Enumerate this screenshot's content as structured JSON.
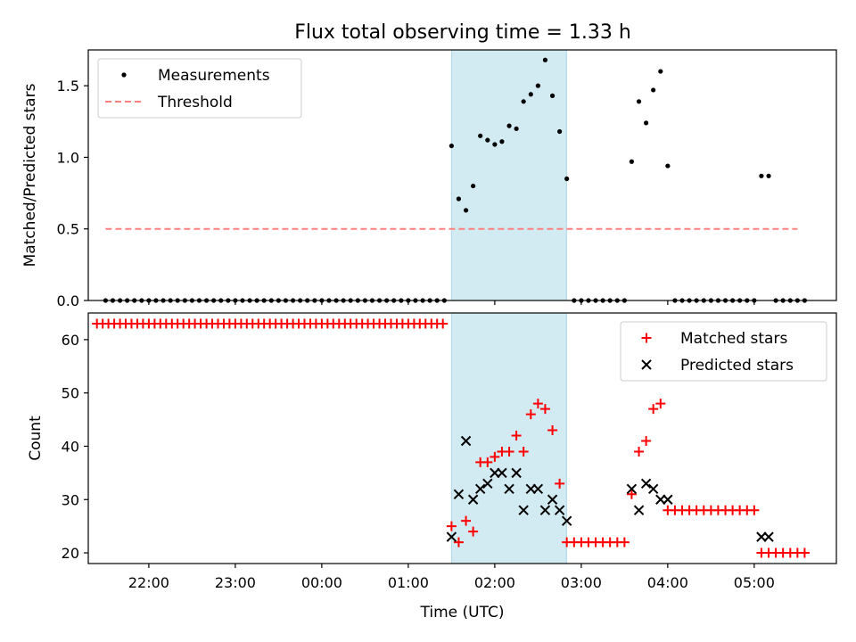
{
  "title": "Flux total observing time = 1.33 h",
  "colors": {
    "measurement": "#000000",
    "threshold": "#ff7f7f",
    "matched": "#ff0000",
    "predicted": "#000000",
    "highlight": "#add8e6"
  },
  "chart_data": [
    {
      "type": "scatter",
      "ylabel": "Matched/Predicted stars",
      "xlabel": "",
      "xlim": [
        21.3,
        29.95
      ],
      "ylim": [
        0,
        1.75
      ],
      "yticks": [
        0.0,
        0.5,
        1.0,
        1.5
      ],
      "ytick_labels": [
        "0.0",
        "0.5",
        "1.0",
        "1.5"
      ],
      "highlight_span": [
        25.5,
        26.83
      ],
      "legend": {
        "position": "upper-left",
        "entries": [
          "Measurements",
          "Threshold"
        ]
      },
      "threshold": {
        "name": "Threshold",
        "y": 0.5,
        "x_range": [
          21.5,
          29.5
        ],
        "style": "dashed"
      },
      "series": [
        {
          "name": "Measurements",
          "marker": "dot",
          "points": [
            [
              21.5,
              0
            ],
            [
              21.583,
              0
            ],
            [
              21.667,
              0
            ],
            [
              21.75,
              0
            ],
            [
              21.833,
              0
            ],
            [
              21.917,
              0
            ],
            [
              22.0,
              0
            ],
            [
              22.083,
              0
            ],
            [
              22.167,
              0
            ],
            [
              22.25,
              0
            ],
            [
              22.333,
              0
            ],
            [
              22.417,
              0
            ],
            [
              22.5,
              0
            ],
            [
              22.583,
              0
            ],
            [
              22.667,
              0
            ],
            [
              22.75,
              0
            ],
            [
              22.833,
              0
            ],
            [
              22.917,
              0
            ],
            [
              23.0,
              0
            ],
            [
              23.083,
              0
            ],
            [
              23.167,
              0
            ],
            [
              23.25,
              0
            ],
            [
              23.333,
              0
            ],
            [
              23.417,
              0
            ],
            [
              23.5,
              0
            ],
            [
              23.583,
              0
            ],
            [
              23.667,
              0
            ],
            [
              23.75,
              0
            ],
            [
              23.833,
              0
            ],
            [
              23.917,
              0
            ],
            [
              24.0,
              0
            ],
            [
              24.083,
              0
            ],
            [
              24.167,
              0
            ],
            [
              24.25,
              0
            ],
            [
              24.333,
              0
            ],
            [
              24.417,
              0
            ],
            [
              24.5,
              0
            ],
            [
              24.583,
              0
            ],
            [
              24.667,
              0
            ],
            [
              24.75,
              0
            ],
            [
              24.833,
              0
            ],
            [
              24.917,
              0
            ],
            [
              25.0,
              0
            ],
            [
              25.083,
              0
            ],
            [
              25.167,
              0
            ],
            [
              25.25,
              0
            ],
            [
              25.333,
              0
            ],
            [
              25.417,
              0
            ],
            [
              25.5,
              1.08
            ],
            [
              25.583,
              0.71
            ],
            [
              25.667,
              0.63
            ],
            [
              25.75,
              0.8
            ],
            [
              25.833,
              1.15
            ],
            [
              25.917,
              1.12
            ],
            [
              26.0,
              1.09
            ],
            [
              26.083,
              1.11
            ],
            [
              26.167,
              1.22
            ],
            [
              26.25,
              1.2
            ],
            [
              26.333,
              1.39
            ],
            [
              26.417,
              1.44
            ],
            [
              26.5,
              1.5
            ],
            [
              26.583,
              1.68
            ],
            [
              26.667,
              1.43
            ],
            [
              26.75,
              1.18
            ],
            [
              26.833,
              0.85
            ],
            [
              26.917,
              0
            ],
            [
              27.0,
              0
            ],
            [
              27.083,
              0
            ],
            [
              27.167,
              0
            ],
            [
              27.25,
              0
            ],
            [
              27.333,
              0
            ],
            [
              27.417,
              0
            ],
            [
              27.5,
              0
            ],
            [
              27.583,
              0.97
            ],
            [
              27.667,
              1.39
            ],
            [
              27.75,
              1.24
            ],
            [
              27.833,
              1.47
            ],
            [
              27.917,
              1.6
            ],
            [
              28.0,
              0.94
            ],
            [
              28.083,
              0
            ],
            [
              28.167,
              0
            ],
            [
              28.25,
              0
            ],
            [
              28.333,
              0
            ],
            [
              28.417,
              0
            ],
            [
              28.5,
              0
            ],
            [
              28.583,
              0
            ],
            [
              28.667,
              0
            ],
            [
              28.75,
              0
            ],
            [
              28.833,
              0
            ],
            [
              28.917,
              0
            ],
            [
              29.0,
              0
            ],
            [
              29.083,
              0.87
            ],
            [
              29.167,
              0.87
            ],
            [
              29.25,
              0
            ],
            [
              29.333,
              0
            ],
            [
              29.417,
              0
            ],
            [
              29.5,
              0
            ],
            [
              29.583,
              0
            ]
          ]
        }
      ]
    },
    {
      "type": "scatter",
      "ylabel": "Count",
      "xlabel": "Time (UTC)",
      "xlim": [
        21.3,
        29.95
      ],
      "ylim": [
        18,
        65
      ],
      "yticks": [
        20,
        30,
        40,
        50,
        60
      ],
      "ytick_labels": [
        "20",
        "30",
        "40",
        "50",
        "60"
      ],
      "xticks": [
        22,
        23,
        24,
        25,
        26,
        27,
        28,
        29
      ],
      "xtick_labels": [
        "22:00",
        "23:00",
        "00:00",
        "01:00",
        "02:00",
        "03:00",
        "04:00",
        "05:00"
      ],
      "highlight_span": [
        25.5,
        26.83
      ],
      "legend": {
        "position": "upper-right",
        "entries": [
          "Matched stars",
          "Predicted stars"
        ]
      },
      "series": [
        {
          "name": "Matched stars",
          "marker": "plus",
          "points": [
            [
              21.4,
              63
            ],
            [
              21.467,
              63
            ],
            [
              21.533,
              63
            ],
            [
              21.6,
              63
            ],
            [
              21.667,
              63
            ],
            [
              21.733,
              63
            ],
            [
              21.8,
              63
            ],
            [
              21.867,
              63
            ],
            [
              21.933,
              63
            ],
            [
              22.0,
              63
            ],
            [
              22.067,
              63
            ],
            [
              22.133,
              63
            ],
            [
              22.2,
              63
            ],
            [
              22.267,
              63
            ],
            [
              22.333,
              63
            ],
            [
              22.4,
              63
            ],
            [
              22.467,
              63
            ],
            [
              22.533,
              63
            ],
            [
              22.6,
              63
            ],
            [
              22.667,
              63
            ],
            [
              22.733,
              63
            ],
            [
              22.8,
              63
            ],
            [
              22.867,
              63
            ],
            [
              22.933,
              63
            ],
            [
              23.0,
              63
            ],
            [
              23.067,
              63
            ],
            [
              23.133,
              63
            ],
            [
              23.2,
              63
            ],
            [
              23.267,
              63
            ],
            [
              23.333,
              63
            ],
            [
              23.4,
              63
            ],
            [
              23.467,
              63
            ],
            [
              23.533,
              63
            ],
            [
              23.6,
              63
            ],
            [
              23.667,
              63
            ],
            [
              23.733,
              63
            ],
            [
              23.8,
              63
            ],
            [
              23.867,
              63
            ],
            [
              23.933,
              63
            ],
            [
              24.0,
              63
            ],
            [
              24.067,
              63
            ],
            [
              24.133,
              63
            ],
            [
              24.2,
              63
            ],
            [
              24.267,
              63
            ],
            [
              24.333,
              63
            ],
            [
              24.4,
              63
            ],
            [
              24.467,
              63
            ],
            [
              24.533,
              63
            ],
            [
              24.6,
              63
            ],
            [
              24.667,
              63
            ],
            [
              24.733,
              63
            ],
            [
              24.8,
              63
            ],
            [
              24.867,
              63
            ],
            [
              24.933,
              63
            ],
            [
              25.0,
              63
            ],
            [
              25.067,
              63
            ],
            [
              25.133,
              63
            ],
            [
              25.2,
              63
            ],
            [
              25.267,
              63
            ],
            [
              25.333,
              63
            ],
            [
              25.4,
              63
            ],
            [
              25.5,
              25
            ],
            [
              25.583,
              22
            ],
            [
              25.667,
              26
            ],
            [
              25.75,
              24
            ],
            [
              25.833,
              37
            ],
            [
              25.917,
              37
            ],
            [
              26.0,
              38
            ],
            [
              26.083,
              39
            ],
            [
              26.167,
              39
            ],
            [
              26.25,
              42
            ],
            [
              26.333,
              39
            ],
            [
              26.417,
              46
            ],
            [
              26.5,
              48
            ],
            [
              26.583,
              47
            ],
            [
              26.667,
              43
            ],
            [
              26.75,
              33
            ],
            [
              26.833,
              22
            ],
            [
              26.917,
              22
            ],
            [
              27.0,
              22
            ],
            [
              27.083,
              22
            ],
            [
              27.167,
              22
            ],
            [
              27.25,
              22
            ],
            [
              27.333,
              22
            ],
            [
              27.417,
              22
            ],
            [
              27.5,
              22
            ],
            [
              27.583,
              31
            ],
            [
              27.667,
              39
            ],
            [
              27.75,
              41
            ],
            [
              27.833,
              47
            ],
            [
              27.917,
              48
            ],
            [
              28.0,
              28
            ],
            [
              28.083,
              28
            ],
            [
              28.167,
              28
            ],
            [
              28.25,
              28
            ],
            [
              28.333,
              28
            ],
            [
              28.417,
              28
            ],
            [
              28.5,
              28
            ],
            [
              28.583,
              28
            ],
            [
              28.667,
              28
            ],
            [
              28.75,
              28
            ],
            [
              28.833,
              28
            ],
            [
              28.917,
              28
            ],
            [
              29.0,
              28
            ],
            [
              29.083,
              20
            ],
            [
              29.167,
              20
            ],
            [
              29.25,
              20
            ],
            [
              29.333,
              20
            ],
            [
              29.417,
              20
            ],
            [
              29.5,
              20
            ],
            [
              29.583,
              20
            ]
          ]
        },
        {
          "name": "Predicted stars",
          "marker": "x",
          "points": [
            [
              25.5,
              23
            ],
            [
              25.583,
              31
            ],
            [
              25.667,
              41
            ],
            [
              25.75,
              30
            ],
            [
              25.833,
              32
            ],
            [
              25.917,
              33
            ],
            [
              26.0,
              35
            ],
            [
              26.083,
              35
            ],
            [
              26.167,
              32
            ],
            [
              26.25,
              35
            ],
            [
              26.333,
              28
            ],
            [
              26.417,
              32
            ],
            [
              26.5,
              32
            ],
            [
              26.583,
              28
            ],
            [
              26.667,
              30
            ],
            [
              26.75,
              28
            ],
            [
              26.833,
              26
            ],
            [
              27.583,
              32
            ],
            [
              27.667,
              28
            ],
            [
              27.75,
              33
            ],
            [
              27.833,
              32
            ],
            [
              27.917,
              30
            ],
            [
              28.0,
              30
            ],
            [
              29.083,
              23
            ],
            [
              29.167,
              23
            ]
          ]
        }
      ]
    }
  ]
}
